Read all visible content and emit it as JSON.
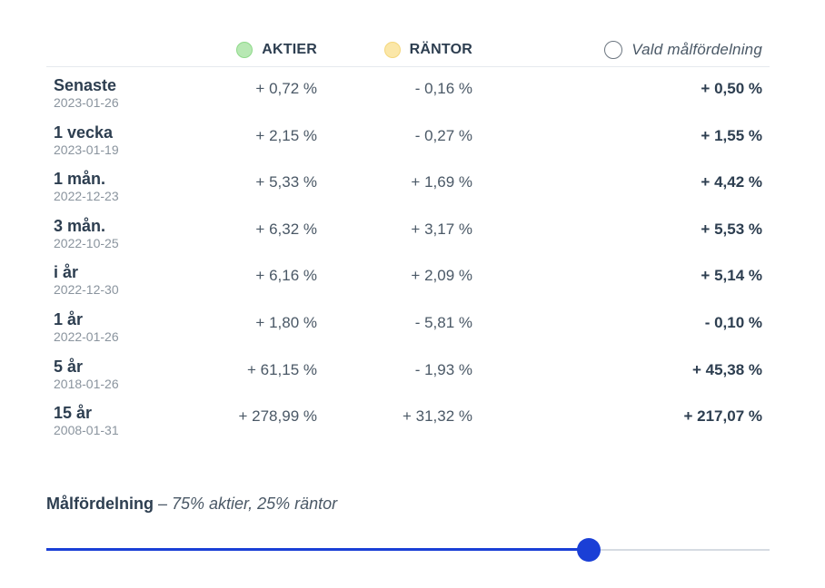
{
  "header": {
    "aktier": "AKTIER",
    "rantor": "RÄNTOR",
    "vald": "Vald målfördelning"
  },
  "colors": {
    "aktier": "#b7e8b3",
    "rantor": "#fbe7a8",
    "accent": "#1a3fd6"
  },
  "rows": [
    {
      "label": "Senaste",
      "date": "2023-01-26",
      "aktier": "+ 0,72 %",
      "rantor": "- 0,16 %",
      "vald": "+ 0,50 %"
    },
    {
      "label": "1 vecka",
      "date": "2023-01-19",
      "aktier": "+ 2,15 %",
      "rantor": "- 0,27 %",
      "vald": "+ 1,55 %"
    },
    {
      "label": "1 mån.",
      "date": "2022-12-23",
      "aktier": "+ 5,33 %",
      "rantor": "+ 1,69 %",
      "vald": "+ 4,42 %"
    },
    {
      "label": "3 mån.",
      "date": "2022-10-25",
      "aktier": "+ 6,32 %",
      "rantor": "+ 3,17 %",
      "vald": "+ 5,53 %"
    },
    {
      "label": "i år",
      "date": "2022-12-30",
      "aktier": "+ 6,16 %",
      "rantor": "+ 2,09 %",
      "vald": "+ 5,14 %"
    },
    {
      "label": "1 år",
      "date": "2022-01-26",
      "aktier": "+ 1,80 %",
      "rantor": "- 5,81 %",
      "vald": "- 0,10 %"
    },
    {
      "label": "5 år",
      "date": "2018-01-26",
      "aktier": "+ 61,15 %",
      "rantor": "- 1,93 %",
      "vald": "+ 45,38 %"
    },
    {
      "label": "15 år",
      "date": "2008-01-31",
      "aktier": "+ 278,99 %",
      "rantor": "+ 31,32 %",
      "vald": "+ 217,07 %"
    }
  ],
  "allocation": {
    "title": "Målfördelning",
    "description": " – 75% aktier, 25% räntor",
    "slider_value_percent": 75
  }
}
